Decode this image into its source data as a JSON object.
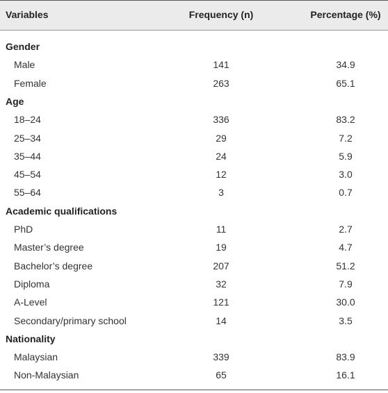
{
  "table": {
    "columns": [
      "Variables",
      "Frequency (n)",
      "Percentage (%)"
    ],
    "groups": [
      {
        "name": "Gender",
        "rows": [
          [
            "Male",
            "141",
            "34.9"
          ],
          [
            "Female",
            "263",
            "65.1"
          ]
        ]
      },
      {
        "name": "Age",
        "rows": [
          [
            "18–24",
            "336",
            "83.2"
          ],
          [
            "25–34",
            "29",
            "7.2"
          ],
          [
            "35–44",
            "24",
            "5.9"
          ],
          [
            "45–54",
            "12",
            "3.0"
          ],
          [
            "55–64",
            "3",
            "0.7"
          ]
        ]
      },
      {
        "name": "Academic qualifications",
        "rows": [
          [
            "PhD",
            "11",
            "2.7"
          ],
          [
            "Master’s degree",
            "19",
            "4.7"
          ],
          [
            "Bachelor’s degree",
            "207",
            "51.2"
          ],
          [
            "Diploma",
            "32",
            "7.9"
          ],
          [
            "A-Level",
            "121",
            "30.0"
          ],
          [
            "Secondary/primary school",
            "14",
            "3.5"
          ]
        ]
      },
      {
        "name": "Nationality",
        "rows": [
          [
            "Malaysian",
            "339",
            "83.9"
          ],
          [
            "Non-Malaysian",
            "65",
            "16.1"
          ]
        ]
      }
    ]
  }
}
